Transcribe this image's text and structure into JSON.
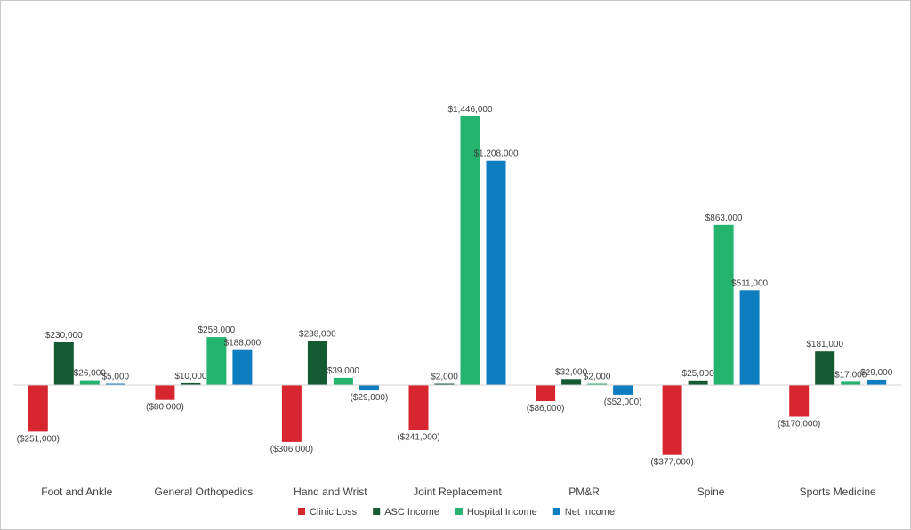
{
  "chart_data": {
    "type": "bar",
    "categories": [
      "Foot and Ankle",
      "General Orthopedics",
      "Hand and Wrist",
      "Joint Replacement",
      "PM&R",
      "Spine",
      "Sports Medicine"
    ],
    "series": [
      {
        "name": "Clinic Loss",
        "color": "#d7262f",
        "values": [
          -251000,
          -80000,
          -306000,
          -241000,
          -86000,
          -377000,
          -170000
        ],
        "labels": [
          "($251,000)",
          "($80,000)",
          "($306,000)",
          "($241,000)",
          "($86,000)",
          "($377,000)",
          "($170,000)"
        ]
      },
      {
        "name": "ASC Income",
        "color": "#145a32",
        "values": [
          230000,
          10000,
          238000,
          2000,
          32000,
          25000,
          181000
        ],
        "labels": [
          "$230,000",
          "$10,000",
          "$238,000",
          "$2,000",
          "$32,000",
          "$25,000",
          "$181,000"
        ]
      },
      {
        "name": "Hospital Income",
        "color": "#25b46e",
        "values": [
          26000,
          258000,
          39000,
          1446000,
          2000,
          863000,
          17000
        ],
        "labels": [
          "$26,000",
          "$258,000",
          "$39,000",
          "$1,446,000",
          "$2,000",
          "$863,000",
          "$17,000"
        ]
      },
      {
        "name": "Net Income",
        "color": "#0f7ec1",
        "values": [
          5000,
          188000,
          -29000,
          1208000,
          -52000,
          511000,
          29000
        ],
        "labels": [
          "$5,000",
          "$188,000",
          "($29,000)",
          "$1,208,000",
          "($52,000)",
          "$511,000",
          "$29,000"
        ]
      }
    ],
    "legend_position": "bottom",
    "grid": false,
    "zero_line": true
  }
}
